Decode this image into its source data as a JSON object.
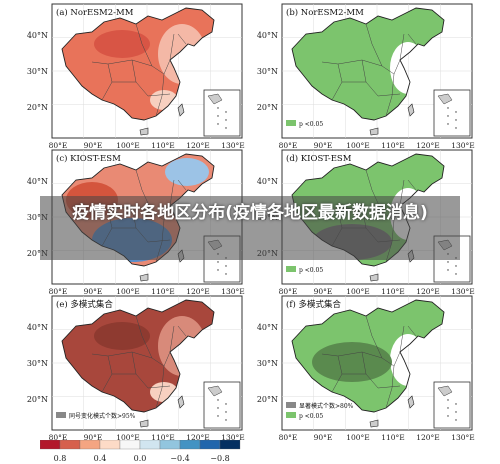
{
  "panels": [
    {
      "label": "(a) NorESM2-MM",
      "style": "red",
      "legend": ""
    },
    {
      "label": "(b) NorESM2-MM",
      "style": "sig",
      "legend": "p <0.05",
      "legend2": ""
    },
    {
      "label": "(c) KIOST-ESM",
      "style": "redblue",
      "legend": ""
    },
    {
      "label": "(d) KIOST-ESM",
      "style": "sig",
      "legend": "p <0.05",
      "legend2": ""
    },
    {
      "label": "(e) 多模式集合",
      "style": "darkred",
      "legend": "同号变化模式个数>95%"
    },
    {
      "label": "(f) 多模式集合",
      "style": "sigdark",
      "legend": "显著模式个数>80%",
      "legend2": "p <0.05"
    }
  ],
  "axes": {
    "lat_ticks": [
      "40°N",
      "30°N",
      "20°N"
    ],
    "lon_ticks": [
      "80°E",
      "90°E",
      "100°E",
      "110°E",
      "120°E",
      "130°E"
    ]
  },
  "colorbar": {
    "ticks": [
      "0.8",
      "0.4",
      "0.0",
      "−0.4",
      "−0.8"
    ],
    "colors": [
      "#b2182b",
      "#d6604d",
      "#f4a582",
      "#fddbc7",
      "#f7f7f7",
      "#d1e5f0",
      "#92c5de",
      "#4393c3",
      "#2166ac",
      "#053061"
    ]
  },
  "overlay_title": "疫情实时各地区分布(疫情各地区最新数据消息)",
  "colors": {
    "green": "#7cc46d",
    "darkgreen": "#5a8a4e",
    "red": "#e8735a",
    "darkred": "#a8473c",
    "blue": "#5a8cc8"
  }
}
